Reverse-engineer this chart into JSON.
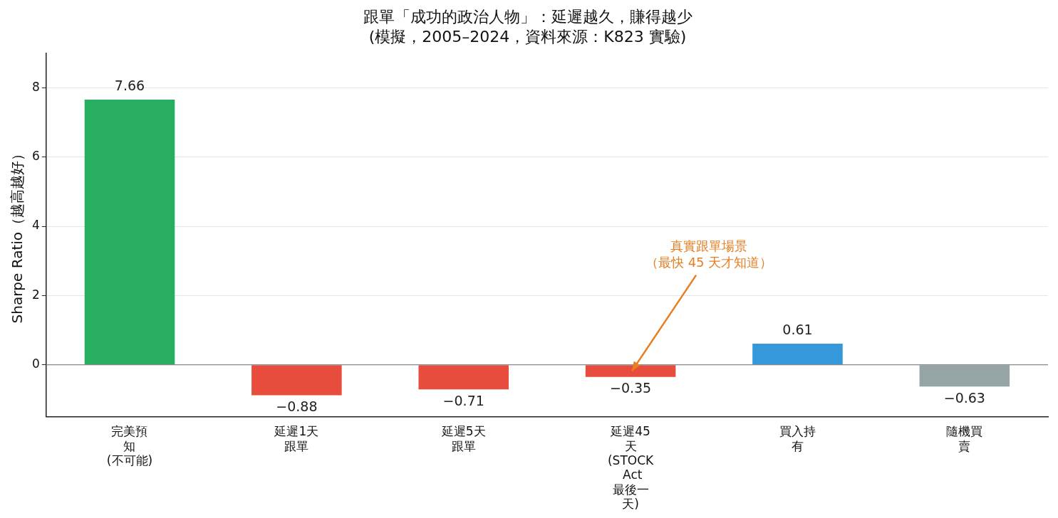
{
  "chart_data": {
    "type": "bar",
    "title": "跟單「成功的政治人物」：延遲越久，賺得越少",
    "subtitle": "(模擬，2005–2024，資料來源：K823 實驗)",
    "ylabel": "Sharpe Ratio（越高越好）",
    "categories": [
      "完美預知\n(不可能)",
      "延遲1天跟單",
      "延遲5天跟單",
      "延遲45天\n(STOCK Act\n最後一天)",
      "買入持有",
      "隨機買賣"
    ],
    "values": [
      7.66,
      -0.88,
      -0.71,
      -0.35,
      0.61,
      -0.63
    ],
    "colors": [
      "#27ae60",
      "#e74c3c",
      "#e74c3c",
      "#e74c3c",
      "#3498db",
      "#95a5a6"
    ],
    "ylim": [
      -1.5,
      9
    ],
    "yticks": [
      0,
      2,
      4,
      6,
      8
    ],
    "grid": "y",
    "data_labels": true,
    "legend": false,
    "ref_lines": [
      {
        "axis": "y",
        "value": 0,
        "color": "#888888"
      }
    ],
    "annotations": [
      {
        "text": "真實跟單場景（最快 45 天才知道）",
        "x": "延遲45天\n(STOCK Act\n最後一天)",
        "y": -0.3
      }
    ]
  }
}
